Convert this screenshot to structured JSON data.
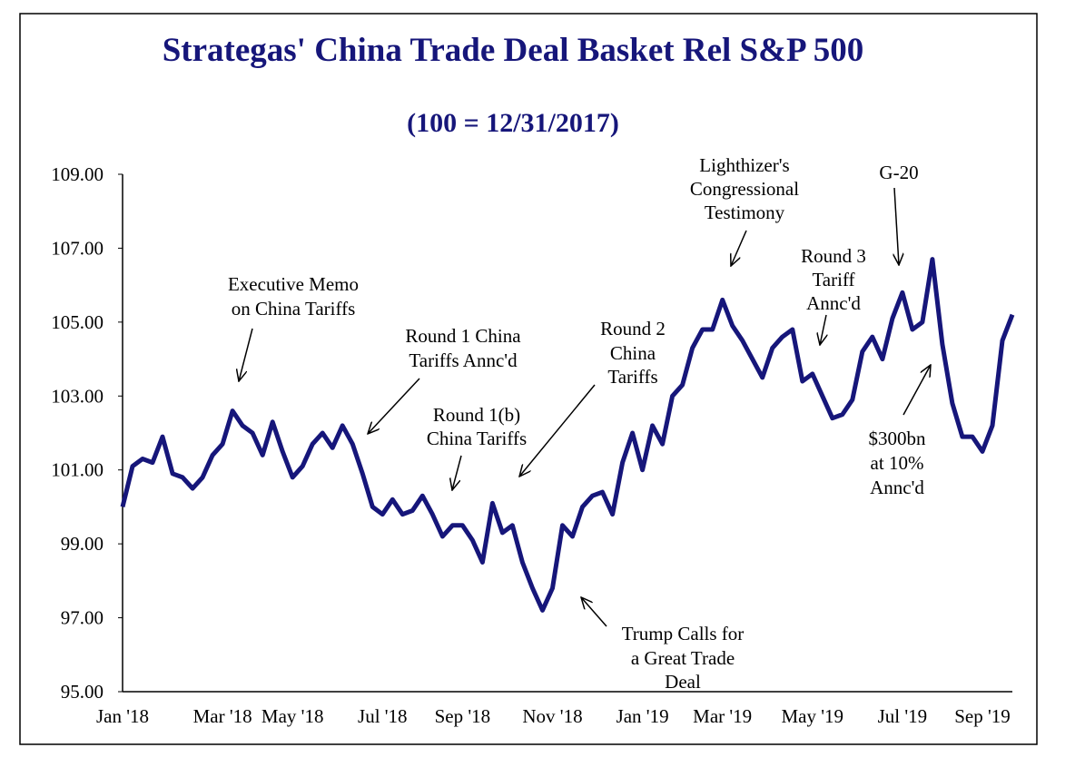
{
  "chart_data": {
    "type": "line",
    "title": "Strategas' China Trade Deal Basket Rel S&P 500",
    "subtitle": "(100 = 12/31/2017)",
    "categories": [
      "Jan '18",
      null,
      null,
      null,
      null,
      null,
      null,
      null,
      null,
      null,
      "Mar '18",
      null,
      null,
      null,
      null,
      null,
      null,
      "May '18",
      null,
      null,
      null,
      null,
      null,
      null,
      null,
      null,
      "Jul '18",
      null,
      null,
      null,
      null,
      null,
      null,
      null,
      "Sep '18",
      null,
      null,
      null,
      null,
      null,
      null,
      null,
      null,
      "Nov '18",
      null,
      null,
      null,
      null,
      null,
      null,
      null,
      null,
      "Jan '19",
      null,
      null,
      null,
      null,
      null,
      null,
      null,
      "Mar '19",
      null,
      null,
      null,
      null,
      null,
      null,
      null,
      null,
      "May '19",
      null,
      null,
      null,
      null,
      null,
      null,
      null,
      null,
      "Jul '19",
      null,
      null,
      null,
      null,
      null,
      null,
      null,
      "Sep '19",
      null,
      null,
      null
    ],
    "series": [
      {
        "name": "China Trade Deal Basket Rel S&P 500",
        "color": "#16167a",
        "values": [
          100.0,
          101.1,
          101.3,
          101.2,
          101.9,
          100.9,
          100.8,
          100.5,
          100.8,
          101.4,
          101.7,
          102.6,
          102.2,
          102.0,
          101.4,
          102.3,
          101.5,
          100.8,
          101.1,
          101.7,
          102.0,
          101.6,
          102.2,
          101.7,
          100.9,
          100.0,
          99.8,
          100.2,
          99.8,
          99.9,
          100.3,
          99.8,
          99.2,
          99.5,
          99.5,
          99.1,
          98.5,
          100.1,
          99.3,
          99.5,
          98.5,
          97.8,
          97.2,
          97.8,
          99.5,
          99.2,
          100.0,
          100.3,
          100.4,
          99.8,
          101.2,
          102.0,
          101.0,
          102.2,
          101.7,
          103.0,
          103.3,
          104.3,
          104.8,
          104.8,
          105.6,
          104.9,
          104.5,
          104.0,
          103.5,
          104.3,
          104.6,
          104.8,
          103.4,
          103.6,
          103.0,
          102.4,
          102.5,
          102.9,
          104.2,
          104.6,
          104.0,
          105.1,
          105.8,
          104.8,
          105.0,
          106.7,
          104.4,
          102.8,
          101.9,
          101.9,
          101.5,
          102.2,
          104.5,
          105.2
        ]
      }
    ],
    "ylim": [
      95,
      109
    ],
    "yticks": [
      {
        "value": 95,
        "label": "95.00"
      },
      {
        "value": 97,
        "label": "97.00"
      },
      {
        "value": 99,
        "label": "99.00"
      },
      {
        "value": 101,
        "label": "101.00"
      },
      {
        "value": 103,
        "label": "103.00"
      },
      {
        "value": 105,
        "label": "105.00"
      },
      {
        "value": 107,
        "label": "107.00"
      },
      {
        "value": 109,
        "label": "109.00"
      }
    ],
    "grid": false,
    "annotations": [
      {
        "lines": [
          "Executive Memo",
          "on China Tariffs"
        ]
      },
      {
        "lines": [
          "Round 1 China",
          "Tariffs Annc'd"
        ]
      },
      {
        "lines": [
          "Round 1(b)",
          "China Tariffs"
        ]
      },
      {
        "lines": [
          "Round 2",
          "China",
          "Tariffs"
        ]
      },
      {
        "lines": [
          "Trump Calls for",
          "a Great Trade",
          "Deal"
        ]
      },
      {
        "lines": [
          "Lighthizer's",
          "Congressional",
          "Testimony"
        ]
      },
      {
        "lines": [
          "G-20"
        ]
      },
      {
        "lines": [
          "Round 3",
          "Tariff",
          "Annc'd"
        ]
      },
      {
        "lines": [
          "$300bn",
          "at 10%",
          "Annc'd"
        ]
      }
    ]
  }
}
